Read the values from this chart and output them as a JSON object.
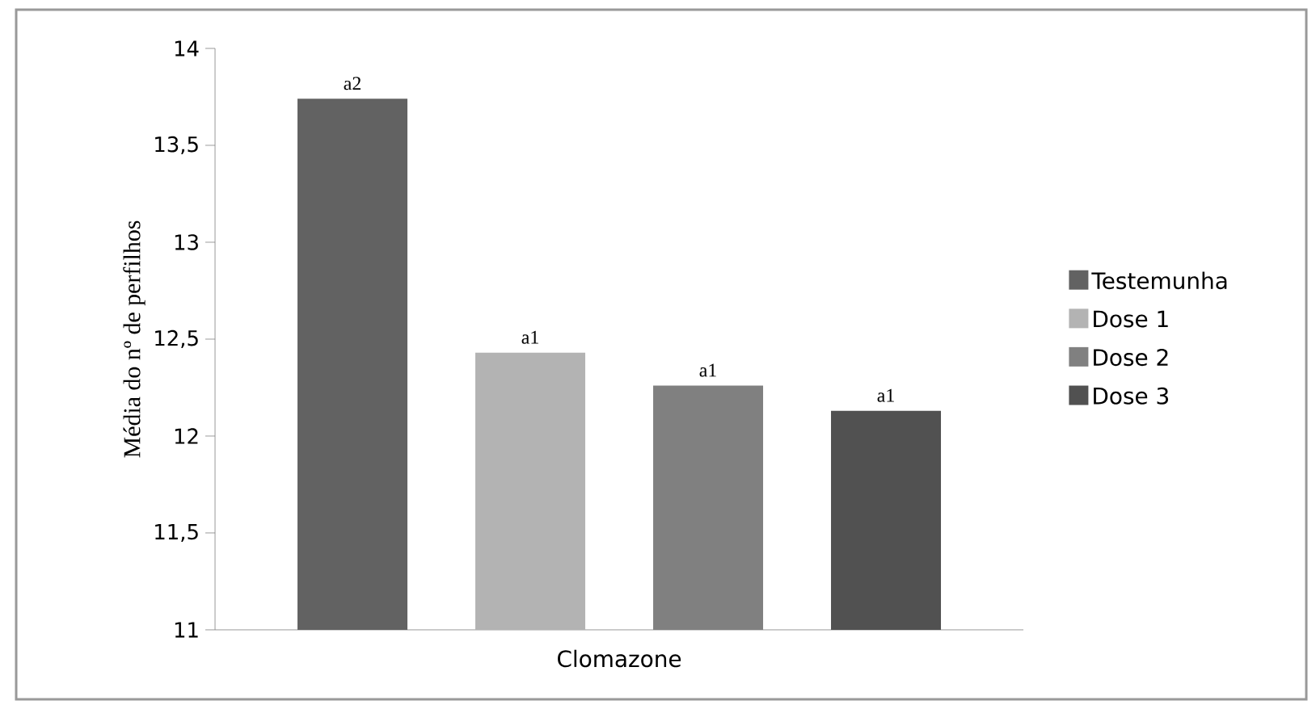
{
  "chart_data": {
    "type": "bar",
    "xlabel": "Clomazone",
    "ylabel": "Média do nº de perfilhos",
    "categories": [
      null
    ],
    "series": [
      {
        "name": "Testemunha",
        "color": "#626262",
        "values": [
          13.74
        ],
        "value_labels": [
          "a2"
        ]
      },
      {
        "name": "Dose 1",
        "color": "#b3b3b3",
        "values": [
          12.43
        ],
        "value_labels": [
          "a1"
        ]
      },
      {
        "name": "Dose 2",
        "color": "#808080",
        "values": [
          12.26
        ],
        "value_labels": [
          "a1"
        ]
      },
      {
        "name": "Dose 3",
        "color": "#515151",
        "values": [
          12.13
        ],
        "value_labels": [
          "a1"
        ]
      }
    ],
    "ylim": [
      11,
      14
    ],
    "yticks": [
      {
        "value": 11,
        "label": "11"
      },
      {
        "value": 11.5,
        "label": "11,5"
      },
      {
        "value": 12,
        "label": "12"
      },
      {
        "value": 12.5,
        "label": "12,5"
      },
      {
        "value": 13,
        "label": "13"
      },
      {
        "value": 13.5,
        "label": "13,5"
      },
      {
        "value": 14,
        "label": "14"
      }
    ],
    "legend": "right",
    "grid": false
  }
}
